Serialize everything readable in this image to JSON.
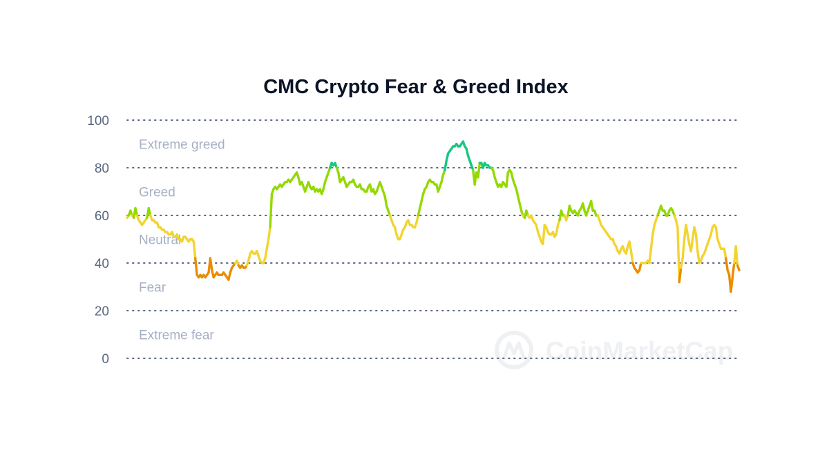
{
  "chart_data": {
    "type": "line",
    "title": "CMC Crypto Fear & Greed Index",
    "xlabel": "",
    "ylabel": "",
    "ylim": [
      0,
      100
    ],
    "yticks": [
      0,
      20,
      40,
      60,
      80,
      100
    ],
    "grid": true,
    "bands": [
      {
        "label": "Extreme greed",
        "from": 80,
        "to": 100,
        "color": "#16c784"
      },
      {
        "label": "Greed",
        "from": 60,
        "to": 80,
        "color": "#93d900"
      },
      {
        "label": "Neutral",
        "from": 40,
        "to": 60,
        "color": "#f3d42f"
      },
      {
        "label": "Fear",
        "from": 20,
        "to": 40,
        "color": "#ea8c00"
      },
      {
        "label": "Extreme fear",
        "from": 0,
        "to": 20,
        "color": "#ea3943"
      }
    ],
    "series": [
      {
        "values": [
          59,
          60,
          62,
          60,
          59,
          63,
          60,
          58,
          57,
          56,
          57,
          58,
          59,
          63,
          60,
          58,
          58,
          57,
          57,
          55,
          55,
          54,
          54,
          53,
          53,
          52,
          52,
          53,
          51,
          51,
          52,
          50,
          50,
          49,
          51,
          51,
          50,
          49,
          50,
          50,
          49,
          42,
          35,
          34,
          35,
          34,
          35,
          34,
          35,
          36,
          42,
          37,
          34,
          35,
          36,
          35,
          35,
          35,
          36,
          35,
          34,
          33,
          36,
          38,
          39,
          40,
          41,
          39,
          38,
          39,
          38,
          38,
          39,
          41,
          44,
          45,
          44,
          44,
          45,
          43,
          41,
          40,
          40,
          42,
          46,
          50,
          55,
          69,
          71,
          72,
          71,
          72,
          73,
          72,
          73,
          74,
          74,
          75,
          74,
          75,
          76,
          77,
          78,
          76,
          73,
          74,
          72,
          70,
          72,
          74,
          72,
          71,
          72,
          70,
          71,
          70,
          71,
          69,
          71,
          74,
          76,
          78,
          80,
          82,
          81,
          82,
          80,
          78,
          74,
          75,
          76,
          74,
          72,
          73,
          74,
          74,
          75,
          73,
          72,
          72,
          73,
          71,
          71,
          70,
          70,
          72,
          73,
          70,
          71,
          69,
          70,
          72,
          74,
          72,
          70,
          68,
          64,
          62,
          60,
          58,
          56,
          55,
          52,
          50,
          50,
          52,
          54,
          55,
          57,
          58,
          56,
          56,
          55,
          55,
          57,
          60,
          63,
          66,
          69,
          71,
          72,
          74,
          75,
          74,
          74,
          73,
          73,
          70,
          72,
          74,
          77,
          79,
          83,
          86,
          87,
          88,
          89,
          89,
          90,
          89,
          89,
          90,
          91,
          89,
          88,
          85,
          83,
          81,
          79,
          73,
          78,
          76,
          82,
          82,
          80,
          82,
          81,
          81,
          80,
          80,
          79,
          76,
          74,
          72,
          73,
          72,
          74,
          73,
          72,
          78,
          79,
          78,
          75,
          73,
          71,
          68,
          65,
          62,
          60,
          59,
          62,
          60,
          59,
          60,
          58,
          57,
          56,
          53,
          51,
          49,
          48,
          56,
          55,
          53,
          52,
          52,
          53,
          51,
          52,
          56,
          58,
          62,
          60,
          60,
          58,
          60,
          64,
          62,
          61,
          62,
          61,
          60,
          62,
          63,
          65,
          62,
          60,
          62,
          64,
          66,
          62,
          62,
          60,
          60,
          58,
          56,
          55,
          54,
          53,
          52,
          51,
          50,
          50,
          48,
          47,
          45,
          44,
          46,
          47,
          45,
          44,
          47,
          49,
          45,
          40,
          38,
          37,
          36,
          37,
          40,
          40,
          40,
          40,
          41,
          40,
          46,
          52,
          56,
          58,
          60,
          62,
          64,
          62,
          62,
          60,
          60,
          62,
          63,
          62,
          60,
          58,
          55,
          32,
          38,
          42,
          50,
          56,
          52,
          48,
          45,
          50,
          55,
          52,
          45,
          40,
          41,
          43,
          44,
          46,
          48,
          50,
          52,
          55,
          56,
          55,
          50,
          48,
          46,
          46,
          46,
          42,
          37,
          35,
          28,
          34,
          40,
          47,
          39,
          37
        ]
      }
    ],
    "watermark": "CoinMarketCap"
  }
}
